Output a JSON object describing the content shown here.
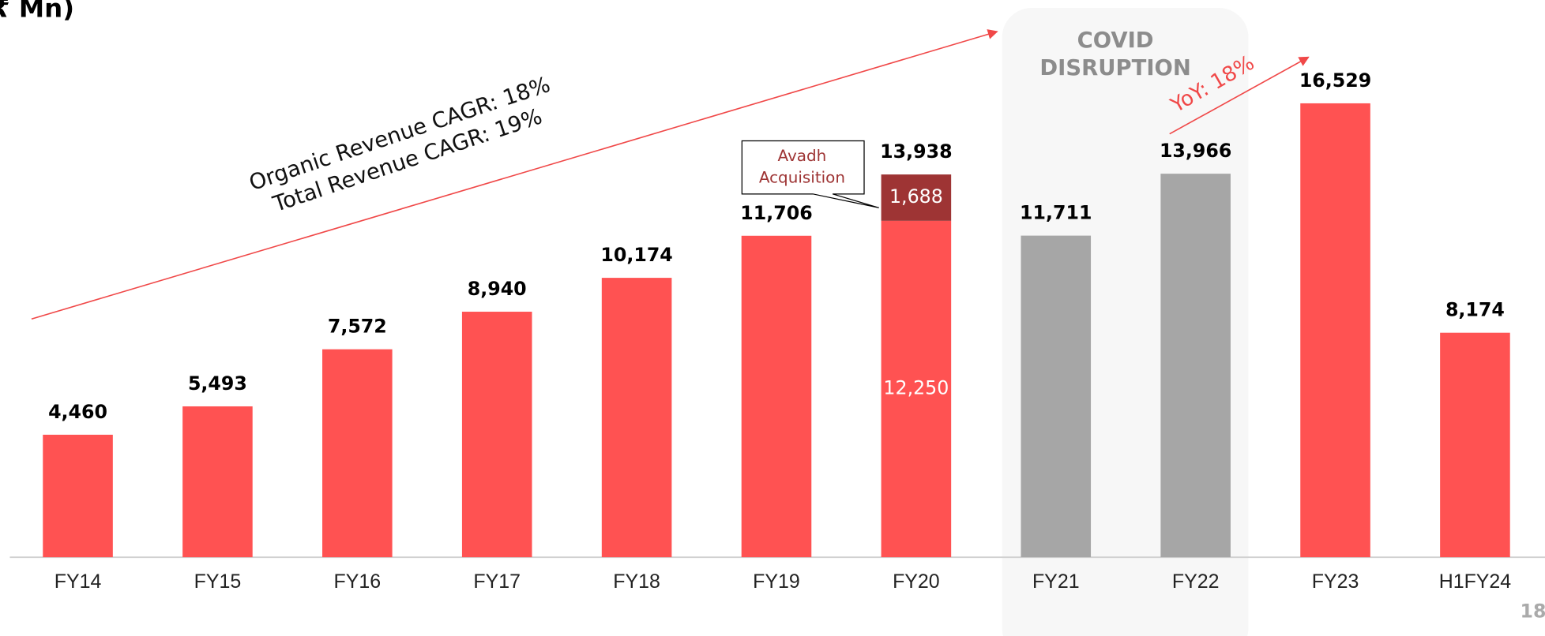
{
  "chart_data": {
    "type": "stacked_bar",
    "title": "₹ Mn)",
    "categories": [
      "FY14",
      "FY15",
      "FY16",
      "FY17",
      "FY18",
      "FY19",
      "FY20",
      "FY21",
      "FY22",
      "FY23",
      "H1FY24"
    ],
    "series": [
      {
        "colors": [
          "#ff5252",
          "#ff5252",
          "#ff5252",
          "#ff5252",
          "#ff5252",
          "#ff5252",
          "#ff5252",
          "#a6a6a6",
          "#a6a6a6",
          "#ff5252",
          "#ff5252"
        ],
        "values": [
          4460,
          5493,
          7572,
          8940,
          10174,
          11706,
          12250,
          11711,
          13966,
          16529,
          8174
        ],
        "value_labels": [
          "4,460",
          "5,493",
          "7,572",
          "8,940",
          "10,174",
          "11,706",
          "12,250",
          "11,711",
          "13,966",
          "16,529",
          "8,174"
        ]
      },
      {
        "color": "#9e3434",
        "values": [
          null,
          null,
          null,
          null,
          null,
          null,
          1688,
          null,
          null,
          null,
          null
        ],
        "value_labels": [
          null,
          null,
          null,
          null,
          null,
          null,
          "1,688",
          null,
          null,
          null,
          null
        ]
      }
    ],
    "totals": [
      null,
      null,
      null,
      null,
      null,
      null,
      13938,
      null,
      null,
      null,
      null
    ],
    "total_labels": [
      null,
      null,
      null,
      null,
      null,
      null,
      "13,938",
      null,
      null,
      null,
      null
    ],
    "ylim": [
      0,
      20290
    ],
    "annotations": {
      "organic_cagr": "Organic Revenue CAGR: 18%",
      "total_cagr": "Total Revenue CAGR: 19%",
      "covid": [
        "COVID",
        "DISRUPTION"
      ],
      "yoy": "YoY: 18%",
      "callout": [
        "Avadh",
        "Acquisition"
      ]
    },
    "page_number": "18"
  }
}
